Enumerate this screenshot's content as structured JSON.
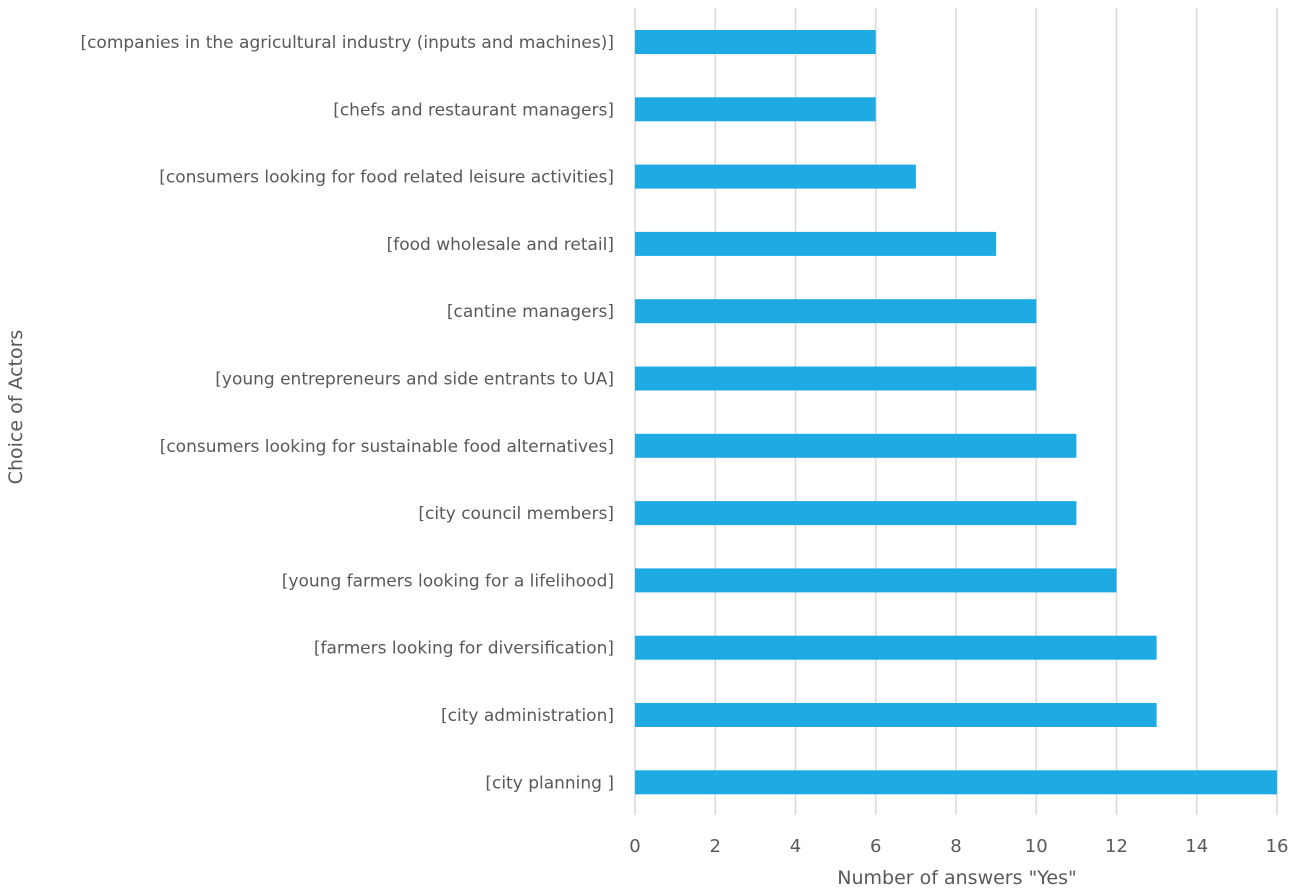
{
  "chart_data": {
    "type": "bar",
    "orientation": "horizontal",
    "categories": [
      "[companies in the agricultural industry (inputs and machines)]",
      "[chefs and restaurant managers]",
      "[consumers looking for food related leisure activities]",
      "[food wholesale and retail]",
      "[cantine managers]",
      "[young entrepreneurs and side entrants to UA]",
      "[consumers looking for sustainable food alternatives]",
      "[city council members]",
      "[young farmers looking for a lifelihood]",
      "[farmers looking for diversification]",
      "[city administration]",
      "[city planning ]"
    ],
    "values": [
      6,
      6,
      7,
      9,
      10,
      10,
      11,
      11,
      12,
      13,
      13,
      16
    ],
    "xlabel": "Number of answers \"Yes\"",
    "ylabel": "Choice of Actors",
    "xlim": [
      0,
      16
    ],
    "xticks": [
      "0",
      "2",
      "4",
      "6",
      "8",
      "10",
      "12",
      "14",
      "16"
    ],
    "grid": "vertical",
    "legend": "none",
    "bar_color": "#1eabe3",
    "grid_color": "#d9d9d9",
    "text_color": "#595959"
  }
}
